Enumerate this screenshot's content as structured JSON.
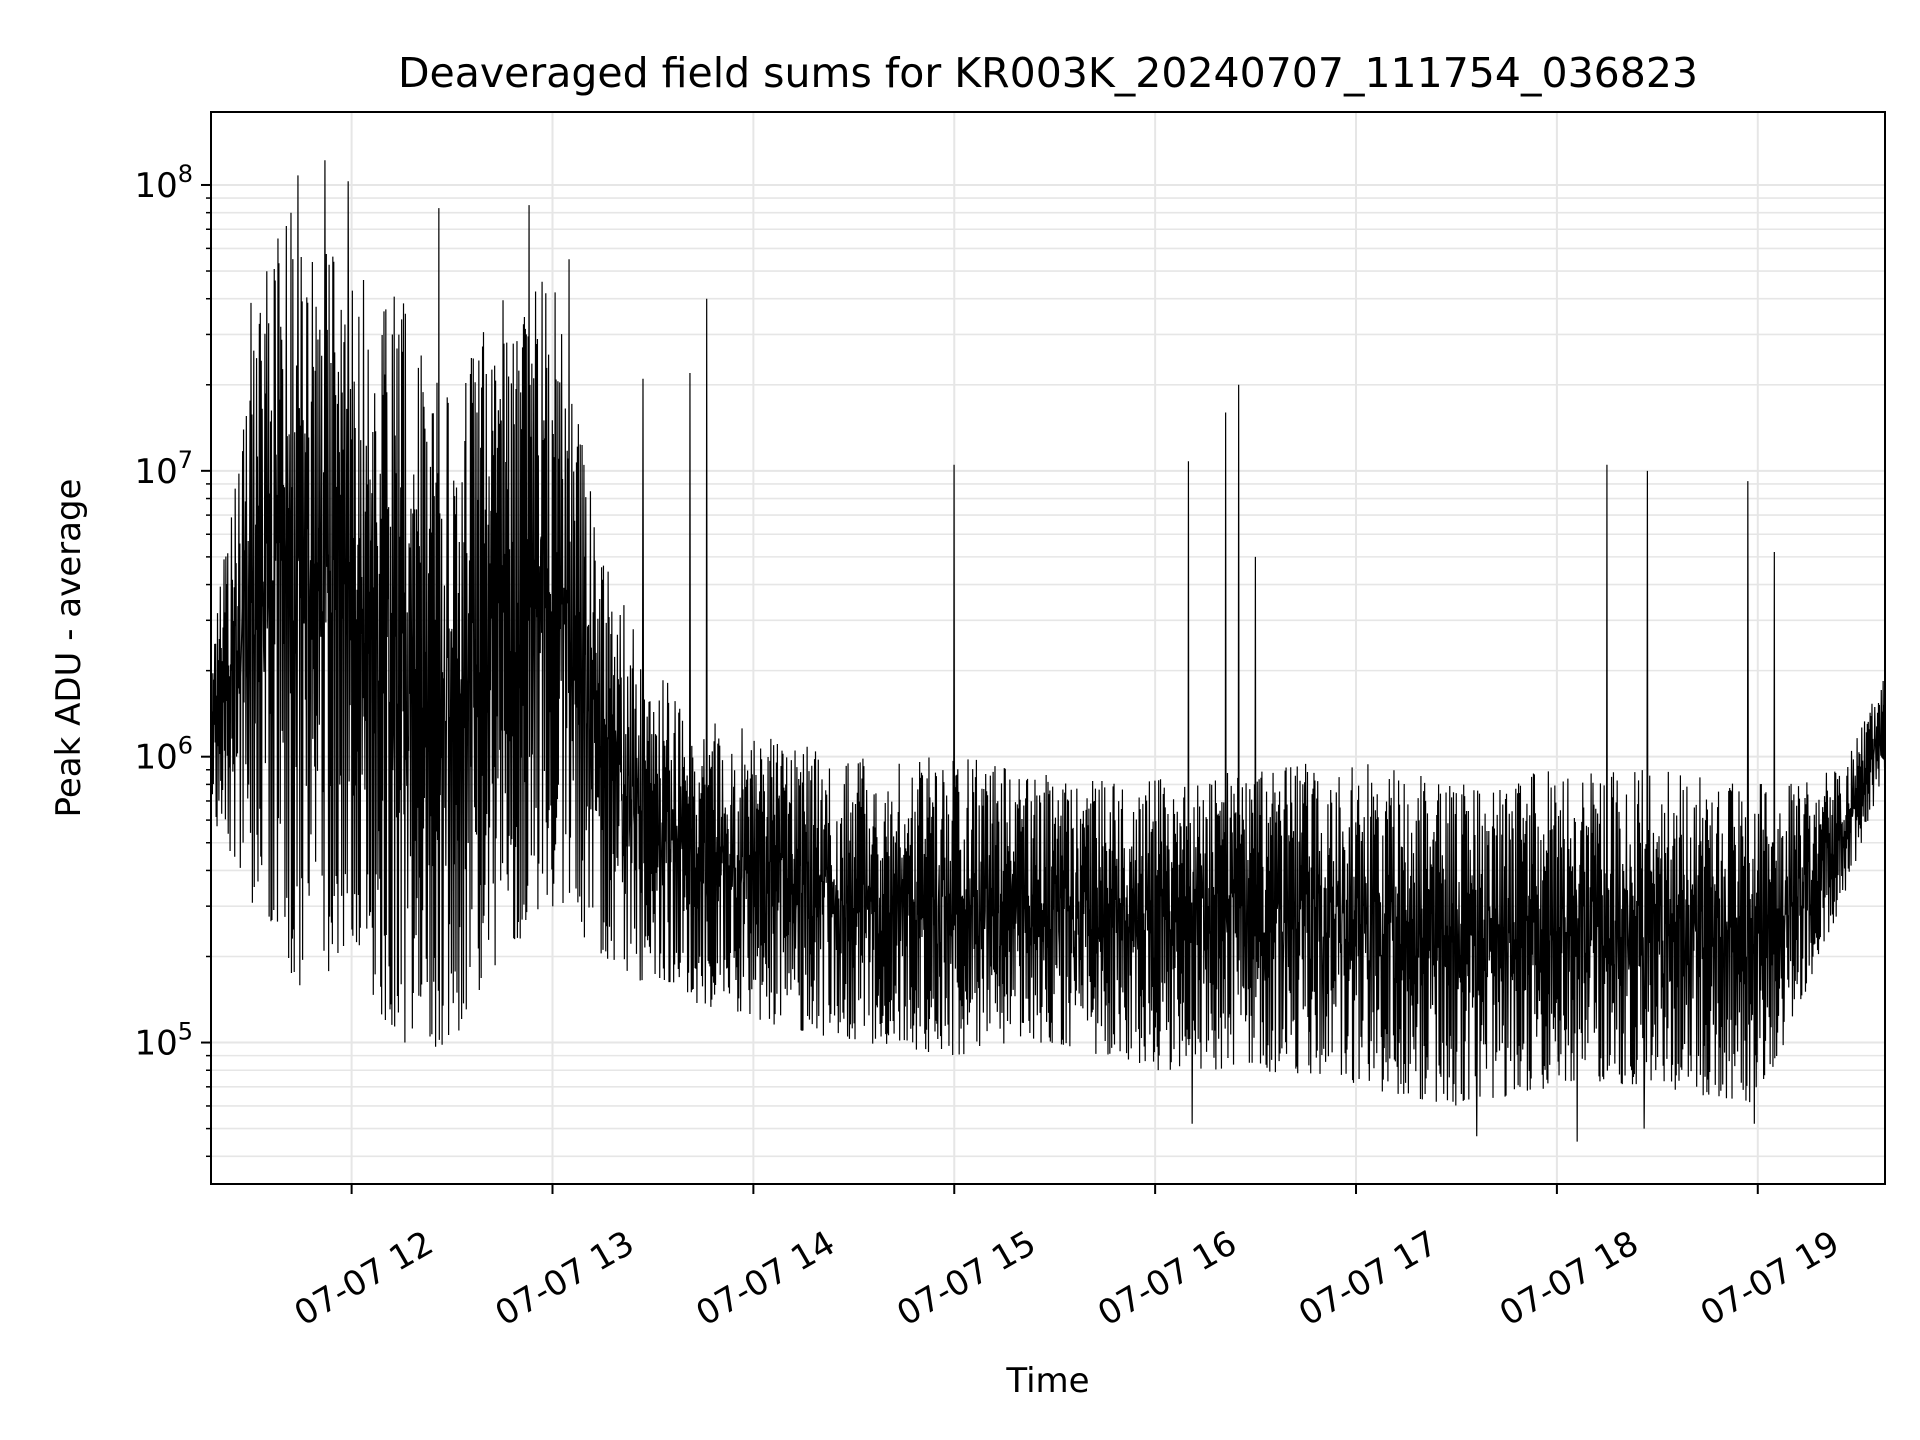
{
  "chart_data": {
    "type": "line",
    "title": "Deaveraged field sums for KR003K_20240707_111754_036823",
    "xlabel": "Time",
    "ylabel": "Peak ADU - average",
    "yscale": "log",
    "ylim": [
      32000,
      180000000
    ],
    "xlim": [
      "2024-07-07 11:18",
      "2024-07-07 19:38"
    ],
    "x_ticks": [
      {
        "label": "07-07 12",
        "time": "2024-07-07 12:00"
      },
      {
        "label": "07-07 13",
        "time": "2024-07-07 13:00"
      },
      {
        "label": "07-07 14",
        "time": "2024-07-07 14:00"
      },
      {
        "label": "07-07 15",
        "time": "2024-07-07 15:00"
      },
      {
        "label": "07-07 16",
        "time": "2024-07-07 16:00"
      },
      {
        "label": "07-07 17",
        "time": "2024-07-07 17:00"
      },
      {
        "label": "07-07 18",
        "time": "2024-07-07 18:00"
      },
      {
        "label": "07-07 19",
        "time": "2024-07-07 19:00"
      }
    ],
    "y_ticks": [
      {
        "base": "10",
        "exp": "5",
        "value": 100000
      },
      {
        "base": "10",
        "exp": "6",
        "value": 1000000
      },
      {
        "base": "10",
        "exp": "7",
        "value": 10000000
      },
      {
        "base": "10",
        "exp": "8",
        "value": 100000000
      }
    ],
    "grid": true,
    "grid_color": "#e6e6e6",
    "line_color": "#000000",
    "series_summary": [
      {
        "time": "2024-07-07 11:18",
        "low": 600000,
        "high": 2000000
      },
      {
        "time": "2024-07-07 11:30",
        "low": 300000,
        "high": 40000000
      },
      {
        "time": "2024-07-07 11:45",
        "low": 150000,
        "high": 100000000
      },
      {
        "time": "2024-07-07 12:00",
        "low": 200000,
        "high": 50000000
      },
      {
        "time": "2024-07-07 12:15",
        "low": 90000,
        "high": 40000000
      },
      {
        "time": "2024-07-07 12:30",
        "low": 100000,
        "high": 20000000
      },
      {
        "time": "2024-07-07 12:45",
        "low": 200000,
        "high": 40000000
      },
      {
        "time": "2024-07-07 13:00",
        "low": 300000,
        "high": 50000000
      },
      {
        "time": "2024-07-07 13:15",
        "low": 200000,
        "high": 5000000
      },
      {
        "time": "2024-07-07 13:30",
        "low": 150000,
        "high": 2000000
      },
      {
        "time": "2024-07-07 14:00",
        "low": 120000,
        "high": 1200000
      },
      {
        "time": "2024-07-07 14:30",
        "low": 100000,
        "high": 1000000
      },
      {
        "time": "2024-07-07 15:00",
        "low": 90000,
        "high": 1000000
      },
      {
        "time": "2024-07-07 15:30",
        "low": 100000,
        "high": 900000
      },
      {
        "time": "2024-07-07 16:00",
        "low": 80000,
        "high": 850000
      },
      {
        "time": "2024-07-07 16:30",
        "low": 80000,
        "high": 900000
      },
      {
        "time": "2024-07-07 17:00",
        "low": 70000,
        "high": 1000000
      },
      {
        "time": "2024-07-07 17:30",
        "low": 60000,
        "high": 800000
      },
      {
        "time": "2024-07-07 18:00",
        "low": 70000,
        "high": 900000
      },
      {
        "time": "2024-07-07 18:30",
        "low": 70000,
        "high": 900000
      },
      {
        "time": "2024-07-07 19:00",
        "low": 60000,
        "high": 800000
      },
      {
        "time": "2024-07-07 19:25",
        "low": 300000,
        "high": 900000
      },
      {
        "time": "2024-07-07 19:38",
        "low": 900000,
        "high": 2000000
      }
    ],
    "spikes": [
      {
        "time": "2024-07-07 11:38",
        "value": 65000000
      },
      {
        "time": "2024-07-07 11:44",
        "value": 108000000
      },
      {
        "time": "2024-07-07 11:52",
        "value": 122000000
      },
      {
        "time": "2024-07-07 11:59",
        "value": 103000000
      },
      {
        "time": "2024-07-07 12:26",
        "value": 83000000
      },
      {
        "time": "2024-07-07 12:53",
        "value": 85000000
      },
      {
        "time": "2024-07-07 13:05",
        "value": 55000000
      },
      {
        "time": "2024-07-07 13:46",
        "value": 40000000
      },
      {
        "time": "2024-07-07 13:41",
        "value": 22000000
      },
      {
        "time": "2024-07-07 13:27",
        "value": 21000000
      },
      {
        "time": "2024-07-07 15:00",
        "value": 10500000
      },
      {
        "time": "2024-07-07 16:10",
        "value": 10800000
      },
      {
        "time": "2024-07-07 16:21",
        "value": 16000000
      },
      {
        "time": "2024-07-07 16:25",
        "value": 20000000
      },
      {
        "time": "2024-07-07 16:30",
        "value": 5000000
      },
      {
        "time": "2024-07-07 18:15",
        "value": 10500000
      },
      {
        "time": "2024-07-07 18:27",
        "value": 10000000
      },
      {
        "time": "2024-07-07 18:57",
        "value": 9200000
      },
      {
        "time": "2024-07-07 19:05",
        "value": 5200000
      }
    ],
    "dips": [
      {
        "time": "2024-07-07 16:11",
        "value": 52000
      },
      {
        "time": "2024-07-07 17:36",
        "value": 47000
      },
      {
        "time": "2024-07-07 18:06",
        "value": 45000
      },
      {
        "time": "2024-07-07 18:26",
        "value": 50000
      },
      {
        "time": "2024-07-07 18:59",
        "value": 52000
      }
    ]
  }
}
